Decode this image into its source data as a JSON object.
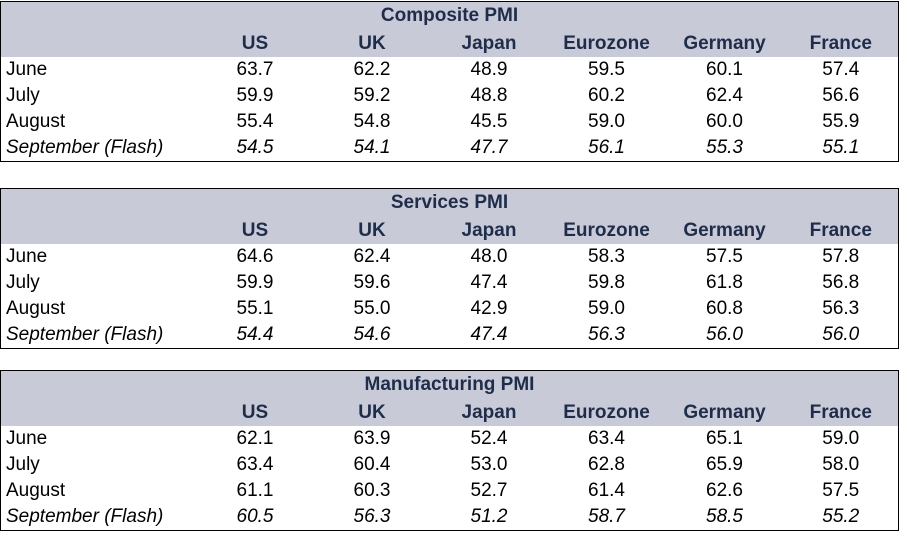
{
  "tables": [
    {
      "title": "Composite PMI",
      "columns": [
        "US",
        "UK",
        "Japan",
        "Eurozone",
        "Germany",
        "France"
      ],
      "rows": [
        {
          "label": "June",
          "values": [
            "63.7",
            "62.2",
            "48.9",
            "59.5",
            "60.1",
            "57.4"
          ]
        },
        {
          "label": "July",
          "values": [
            "59.9",
            "59.2",
            "48.8",
            "60.2",
            "62.4",
            "56.6"
          ]
        },
        {
          "label": "August",
          "values": [
            "55.4",
            "54.8",
            "45.5",
            "59.0",
            "60.0",
            "55.9"
          ]
        },
        {
          "label": "September (Flash)",
          "values": [
            "54.5",
            "54.1",
            "47.7",
            "56.1",
            "55.3",
            "55.1"
          ]
        }
      ]
    },
    {
      "title": "Services PMI",
      "columns": [
        "US",
        "UK",
        "Japan",
        "Eurozone",
        "Germany",
        "France"
      ],
      "rows": [
        {
          "label": "June",
          "values": [
            "64.6",
            "62.4",
            "48.0",
            "58.3",
            "57.5",
            "57.8"
          ]
        },
        {
          "label": "July",
          "values": [
            "59.9",
            "59.6",
            "47.4",
            "59.8",
            "61.8",
            "56.8"
          ]
        },
        {
          "label": "August",
          "values": [
            "55.1",
            "55.0",
            "42.9",
            "59.0",
            "60.8",
            "56.3"
          ]
        },
        {
          "label": "September (Flash)",
          "values": [
            "54.4",
            "54.6",
            "47.4",
            "56.3",
            "56.0",
            "56.0"
          ]
        }
      ]
    },
    {
      "title": "Manufacturing PMI",
      "columns": [
        "US",
        "UK",
        "Japan",
        "Eurozone",
        "Germany",
        "France"
      ],
      "rows": [
        {
          "label": "June",
          "values": [
            "62.1",
            "63.9",
            "52.4",
            "63.4",
            "65.1",
            "59.0"
          ]
        },
        {
          "label": "July",
          "values": [
            "63.4",
            "60.4",
            "53.0",
            "62.8",
            "65.9",
            "58.0"
          ]
        },
        {
          "label": "August",
          "values": [
            "61.1",
            "60.3",
            "52.7",
            "61.4",
            "62.6",
            "57.5"
          ]
        },
        {
          "label": "September (Flash)",
          "values": [
            "60.5",
            "56.3",
            "51.2",
            "58.7",
            "58.5",
            "55.2"
          ]
        }
      ]
    }
  ],
  "colors": {
    "header_background": "#c8cad8",
    "header_text": "#1f2d4a",
    "border": "#000000"
  }
}
